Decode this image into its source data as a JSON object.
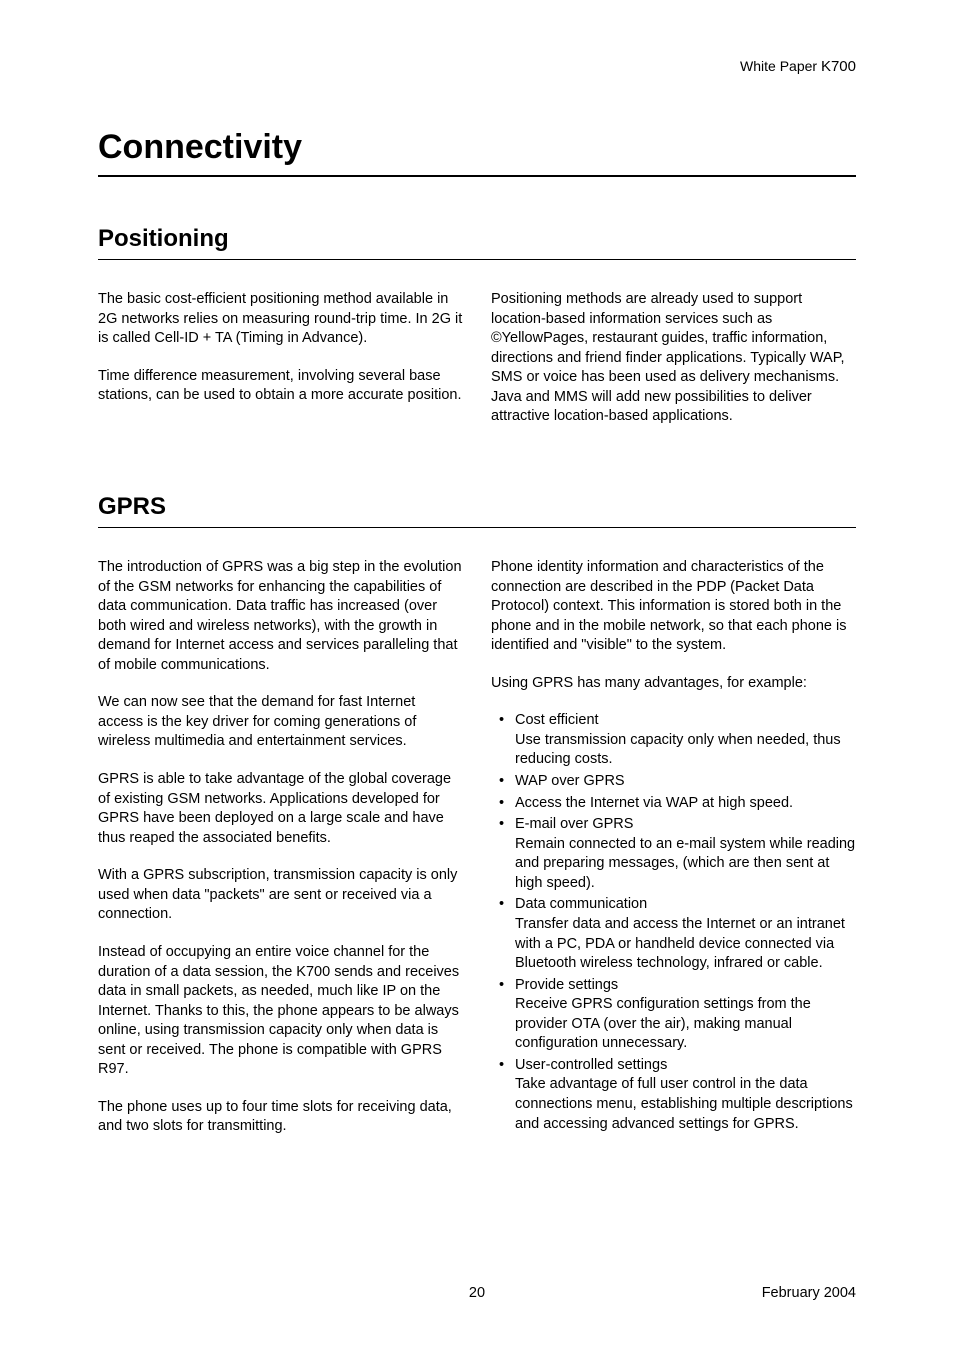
{
  "header": {
    "label": "White Paper",
    "model": "K700"
  },
  "title": "Connectivity",
  "sections": {
    "positioning": {
      "heading": "Positioning",
      "left": {
        "p1": "The basic cost-efficient positioning method available in 2G networks relies on measuring round-trip time. In 2G it is called Cell-ID + TA (Timing in Advance).",
        "p2": "Time difference measurement, involving several base stations, can be used to obtain a more accurate position."
      },
      "right": {
        "p1": "Positioning methods are already used to support location-based information services such as ©YellowPages, restaurant guides, traffic information, directions and friend finder applications. Typically WAP, SMS or voice has been used as delivery mechanisms. Java and MMS will add new possibilities to deliver attractive location-based applications."
      }
    },
    "gprs": {
      "heading": "GPRS",
      "left": {
        "p1": "The introduction of GPRS was a big step in the evolution of the GSM networks for enhancing the capabilities of data communication. Data traffic has increased (over both wired and wireless networks), with the growth in demand for Internet access and services paralleling that of mobile communications.",
        "p2": "We can now see that the demand for fast Internet access is the key driver for coming generations of wireless multimedia and entertainment services.",
        "p3": "GPRS is able to take advantage of the global coverage of existing GSM networks. Applications developed for GPRS have been deployed on a large scale and have thus reaped the associated benefits.",
        "p4": "With a GPRS subscription, transmission capacity is only used when data \"packets\" are sent or received via a connection.",
        "p5": "Instead of occupying an entire voice channel for the duration of a data session, the K700 sends and receives data in small packets, as needed, much like IP on the Internet. Thanks to this, the phone appears to be always online, using transmission capacity only when data is sent or received. The phone is compatible with GPRS R97.",
        "p6": "The phone uses up to four time slots for receiving data, and two slots for transmitting."
      },
      "right": {
        "p1": "Phone identity information and characteristics of the connection are described in the PDP (Packet Data Protocol) context. This information is stored both in the phone and in the mobile network, so that each phone is identified and \"visible\" to the system.",
        "p2": "Using GPRS has many advantages, for example:",
        "bullets": [
          {
            "head": "Cost efficient",
            "sub": "Use transmission capacity only when needed, thus reducing costs."
          },
          {
            "head": "WAP over GPRS",
            "sub": ""
          },
          {
            "head": "Access the Internet via WAP at high speed.",
            "sub": ""
          },
          {
            "head": "E-mail over GPRS",
            "sub": "Remain connected to an e-mail system while reading and preparing messages, (which are then sent at high speed)."
          },
          {
            "head": "Data communication",
            "sub": "Transfer data and access the Internet or an intranet with a PC, PDA or handheld device connected via Bluetooth wireless technology, infrared or cable."
          },
          {
            "head": "Provide settings",
            "sub": "Receive GPRS configuration settings from the provider OTA (over the air), making manual configuration unnecessary."
          },
          {
            "head": "User-controlled settings",
            "sub": "Take advantage of full user control in the data connections menu, establishing multiple descriptions and accessing advanced settings for GPRS."
          }
        ]
      }
    }
  },
  "footer": {
    "page": "20",
    "date": "February 2004"
  }
}
